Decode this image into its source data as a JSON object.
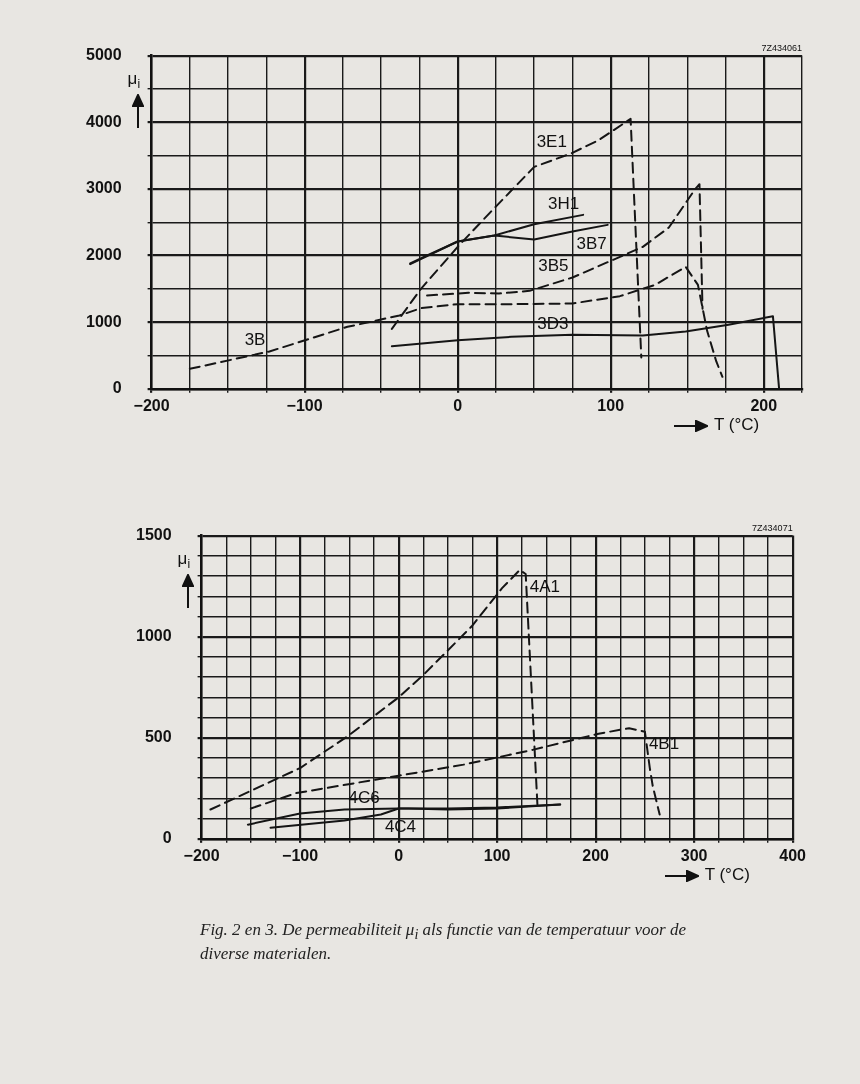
{
  "chart_data": [
    {
      "type": "line",
      "xlabel": "T (°C)",
      "ylabel": "μ$_{i}$",
      "xlim": [
        -200,
        225
      ],
      "xticks": [
        -200,
        {
          "value": -175,
          "label": null
        },
        {
          "value": -150,
          "label": null
        },
        {
          "value": -125,
          "label": null
        },
        -100,
        {
          "value": -75,
          "label": null
        },
        {
          "value": -50,
          "label": null
        },
        {
          "value": -25,
          "label": null
        },
        0,
        {
          "value": 25,
          "label": null
        },
        {
          "value": 50,
          "label": null
        },
        {
          "value": 75,
          "label": null
        },
        100,
        {
          "value": 125,
          "label": null
        },
        {
          "value": 150,
          "label": null
        },
        {
          "value": 175,
          "label": null
        },
        200,
        {
          "value": 225,
          "label": null
        }
      ],
      "ylim": [
        0,
        5000
      ],
      "yticks": [
        0,
        {
          "value": 500,
          "label": null
        },
        1000,
        {
          "value": 1500,
          "label": null
        },
        2000,
        {
          "value": 2500,
          "label": null
        },
        3000,
        {
          "value": 3500,
          "label": null
        },
        4000,
        {
          "value": 4500,
          "label": null
        },
        5000
      ],
      "grid": true,
      "legend": false,
      "marker": "none",
      "series": [
        {
          "color": "#151515",
          "line_style": "dashed",
          "x": [
            -43,
            -24,
            0,
            21,
            50,
            74,
            92,
            113,
            120
          ],
          "values": [
            900,
            1500,
            2130,
            2640,
            3330,
            3530,
            3730,
            4050,
            470
          ]
        },
        {
          "color": "#151515",
          "line_style": "solid",
          "x": [
            -31,
            0,
            24,
            50,
            82
          ],
          "values": [
            1870,
            2210,
            2300,
            2470,
            2610
          ]
        },
        {
          "color": "#151515",
          "line_style": "solid",
          "x": [
            -31,
            -21,
            0,
            24,
            50,
            75,
            98
          ],
          "values": [
            1880,
            1990,
            2210,
            2300,
            2240,
            2360,
            2460
          ]
        },
        {
          "color": "#151515",
          "line_style": "dashed",
          "x": [
            -20,
            7,
            27,
            47,
            75,
            98,
            121,
            138,
            155,
            158,
            160
          ],
          "values": [
            1400,
            1440,
            1430,
            1470,
            1670,
            1900,
            2130,
            2420,
            2990,
            3070,
            1200
          ]
        },
        {
          "color": "#151515",
          "line_style": "dashed",
          "x": [
            -175,
            -123,
            -72,
            -38,
            -24,
            0,
            35,
            75,
            106,
            129,
            149,
            157,
            163,
            169,
            173
          ],
          "values": [
            300,
            560,
            930,
            1100,
            1210,
            1270,
            1270,
            1280,
            1390,
            1560,
            1830,
            1560,
            870,
            410,
            180
          ]
        },
        {
          "color": "#151515",
          "line_style": "solid",
          "x": [
            -43,
            0,
            35,
            75,
            121,
            149,
            177,
            206,
            210
          ],
          "values": [
            640,
            730,
            780,
            810,
            800,
            860,
            960,
            1090,
            10
          ]
        }
      ],
      "annotations": [
        "7Z434061",
        {
          "text": "3E1",
          "x": 74,
          "y": 3530
        },
        {
          "text": "3H1",
          "x": 82,
          "y": 2610
        },
        {
          "text": "3B7",
          "x": 75,
          "y": 2360
        },
        {
          "text": "3B5",
          "x": 75,
          "y": 1670
        },
        {
          "text": "3D3",
          "x": 75,
          "y": 810
        },
        {
          "text": "3B",
          "x": -123,
          "y": 560
        }
      ]
    },
    {
      "type": "line",
      "xlabel": "T (°C)",
      "ylabel": "μ$_{i}$",
      "xlim": [
        -200,
        400
      ],
      "xticks": [
        -200,
        {
          "value": -175,
          "label": null
        },
        {
          "value": -150,
          "label": null
        },
        {
          "value": -125,
          "label": null
        },
        -100,
        {
          "value": -75,
          "label": null
        },
        {
          "value": -50,
          "label": null
        },
        {
          "value": -25,
          "label": null
        },
        0,
        {
          "value": 25,
          "label": null
        },
        {
          "value": 50,
          "label": null
        },
        {
          "value": 75,
          "label": null
        },
        100,
        {
          "value": 125,
          "label": null
        },
        {
          "value": 150,
          "label": null
        },
        {
          "value": 175,
          "label": null
        },
        200,
        {
          "value": 225,
          "label": null
        },
        {
          "value": 250,
          "label": null
        },
        {
          "value": 275,
          "label": null
        },
        300,
        {
          "value": 325,
          "label": null
        },
        {
          "value": 350,
          "label": null
        },
        {
          "value": 375,
          "label": null
        },
        400
      ],
      "ylim": [
        0,
        1500
      ],
      "yticks": [
        0,
        {
          "value": 100,
          "label": null
        },
        {
          "value": 200,
          "label": null
        },
        {
          "value": 300,
          "label": null
        },
        {
          "value": 400,
          "label": null
        },
        500,
        {
          "value": 600,
          "label": null
        },
        {
          "value": 700,
          "label": null
        },
        {
          "value": 800,
          "label": null
        },
        {
          "value": 900,
          "label": null
        },
        1000,
        {
          "value": 1100,
          "label": null
        },
        {
          "value": 1200,
          "label": null
        },
        {
          "value": 1300,
          "label": null
        },
        {
          "value": 1400,
          "label": null
        },
        1500
      ],
      "grid": true,
      "legend": false,
      "marker": "none",
      "series": [
        {
          "color": "#151515",
          "line_style": "dashed",
          "x": [
            -191,
            -100,
            -51,
            0,
            25,
            74,
            105,
            123,
            129,
            141
          ],
          "values": [
            145,
            350,
            510,
            700,
            810,
            1050,
            1240,
            1330,
            1310,
            160
          ]
        },
        {
          "color": "#151515",
          "line_style": "dashed",
          "x": [
            -150,
            -104,
            0,
            66,
            136,
            203,
            234,
            250,
            255,
            258,
            265
          ],
          "values": [
            150,
            226,
            312,
            367,
            440,
            520,
            547,
            530,
            350,
            260,
            120
          ]
        },
        {
          "color": "#151515",
          "line_style": "solid",
          "x": [
            -153,
            -100,
            -55,
            0,
            50,
            100,
            164
          ],
          "values": [
            70,
            125,
            145,
            150,
            150,
            155,
            170
          ]
        },
        {
          "color": "#151515",
          "line_style": "solid",
          "x": [
            -130,
            -55,
            -18,
            0,
            10,
            50,
            100,
            164
          ],
          "values": [
            55,
            90,
            120,
            150,
            150,
            145,
            150,
            170
          ]
        }
      ],
      "annotations": [
        "7Z434071",
        {
          "text": "4A1",
          "x": 129,
          "y": 1310
        },
        {
          "text": "4B1",
          "x": 250,
          "y": 530
        },
        {
          "text": "4C6",
          "x": -55,
          "y": 145
        },
        {
          "text": "4C4",
          "x": -18,
          "y": 120
        },
        "Fig. 2 en 3. De permeabiliteit μ$_{i}$ als functie van de temperatuur voor de diverse materialen."
      ]
    }
  ]
}
